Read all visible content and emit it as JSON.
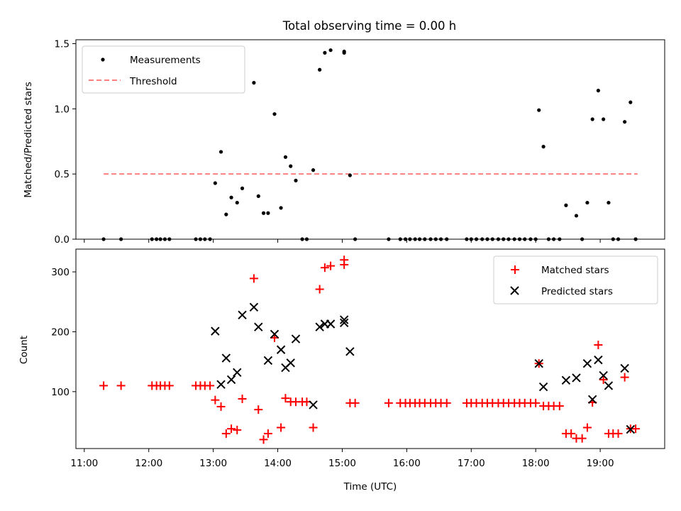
{
  "chart_data": [
    {
      "type": "scatter",
      "title": "Total observing time = 0.00 h",
      "xlabel": "",
      "ylabel": "Matched/Predicted stars",
      "xlim": [
        10.87,
        20.0
      ],
      "ylim": [
        0,
        1.53
      ],
      "yticks": [
        0.0,
        0.5,
        1.0,
        1.5
      ],
      "ytick_labels": [
        "0.0",
        "0.5",
        "1.0",
        "1.5"
      ],
      "legend": {
        "position": "top-left",
        "entries": [
          "Measurements",
          "Threshold"
        ]
      },
      "threshold": {
        "name": "Threshold",
        "y": 0.5,
        "x": [
          11.3,
          19.58
        ],
        "color": "#ff7f7f"
      },
      "series": [
        {
          "name": "Measurements",
          "color": "#000000",
          "x": [
            11.3,
            11.57,
            12.05,
            12.12,
            12.18,
            12.25,
            12.32,
            12.73,
            12.8,
            12.87,
            12.95,
            13.03,
            13.12,
            13.2,
            13.28,
            13.37,
            13.45,
            13.63,
            13.7,
            13.78,
            13.85,
            13.95,
            14.05,
            14.12,
            14.2,
            14.28,
            14.38,
            14.45,
            14.55,
            14.65,
            14.73,
            14.82,
            15.03,
            15.03,
            15.12,
            15.2,
            15.72,
            15.9,
            15.98,
            16.05,
            16.13,
            16.2,
            16.28,
            16.37,
            16.45,
            16.53,
            16.62,
            16.93,
            17.0,
            17.08,
            17.17,
            17.25,
            17.33,
            17.42,
            17.5,
            17.58,
            17.67,
            17.75,
            17.83,
            17.92,
            18.0,
            18.05,
            18.12,
            18.2,
            18.28,
            18.37,
            18.47,
            18.63,
            18.72,
            18.8,
            18.88,
            18.97,
            19.05,
            19.13,
            19.2,
            19.28,
            19.38,
            19.47,
            19.55
          ],
          "y": [
            0,
            0,
            0,
            0,
            0,
            0,
            0,
            0,
            0,
            0,
            0,
            0.43,
            0.67,
            0.19,
            0.32,
            0.28,
            0.39,
            1.2,
            0.33,
            0.2,
            0.2,
            0.96,
            0.24,
            0.63,
            0.56,
            0.45,
            0,
            0,
            0.53,
            1.3,
            1.43,
            1.45,
            1.44,
            1.43,
            0.49,
            0,
            0,
            0,
            0,
            0,
            0,
            0,
            0,
            0,
            0,
            0,
            0,
            0,
            0,
            0,
            0,
            0,
            0,
            0,
            0,
            0,
            0,
            0,
            0,
            0,
            0,
            0.99,
            0.71,
            0,
            0,
            0,
            0.26,
            0.18,
            0,
            0.28,
            0.92,
            1.14,
            0.92,
            0.28,
            0,
            0,
            0.9,
            1.05,
            0
          ]
        }
      ]
    },
    {
      "type": "scatter",
      "title": "",
      "xlabel": "Time (UTC)",
      "ylabel": "Count",
      "xlim": [
        10.87,
        20.0
      ],
      "ylim": [
        5,
        338
      ],
      "yticks": [
        100,
        200,
        300
      ],
      "ytick_labels": [
        "100",
        "200",
        "300"
      ],
      "xticks": [
        11,
        12,
        13,
        14,
        15,
        16,
        17,
        18,
        19
      ],
      "xtick_labels": [
        "11:00",
        "12:00",
        "13:00",
        "14:00",
        "15:00",
        "16:00",
        "17:00",
        "18:00",
        "19:00"
      ],
      "legend": {
        "position": "top-right",
        "entries": [
          "Matched stars",
          "Predicted stars"
        ]
      },
      "series": [
        {
          "name": "Matched stars",
          "marker": "plus",
          "color": "#ff0000",
          "x": [
            11.3,
            11.57,
            12.05,
            12.12,
            12.18,
            12.25,
            12.32,
            12.73,
            12.8,
            12.87,
            12.95,
            13.03,
            13.12,
            13.2,
            13.28,
            13.37,
            13.45,
            13.63,
            13.7,
            13.78,
            13.85,
            13.95,
            14.05,
            14.12,
            14.2,
            14.28,
            14.38,
            14.45,
            14.55,
            14.65,
            14.73,
            14.82,
            15.03,
            15.03,
            15.12,
            15.2,
            15.72,
            15.9,
            15.98,
            16.05,
            16.13,
            16.2,
            16.28,
            16.37,
            16.45,
            16.53,
            16.62,
            16.93,
            17.0,
            17.08,
            17.17,
            17.25,
            17.33,
            17.42,
            17.5,
            17.58,
            17.67,
            17.75,
            17.83,
            17.92,
            18.0,
            18.05,
            18.12,
            18.2,
            18.28,
            18.37,
            18.47,
            18.55,
            18.63,
            18.72,
            18.8,
            18.88,
            18.97,
            19.05,
            19.13,
            19.2,
            19.28,
            19.38,
            19.47,
            19.55
          ],
          "y": [
            110,
            110,
            110,
            110,
            110,
            110,
            110,
            110,
            110,
            110,
            110,
            86,
            75,
            30,
            38,
            36,
            88,
            289,
            70,
            20,
            30,
            190,
            40,
            89,
            83,
            83,
            83,
            83,
            40,
            271,
            307,
            310,
            320,
            312,
            81,
            81,
            81,
            81,
            81,
            81,
            81,
            81,
            81,
            81,
            81,
            81,
            81,
            81,
            81,
            81,
            81,
            81,
            81,
            81,
            81,
            81,
            81,
            81,
            81,
            81,
            81,
            147,
            76,
            76,
            76,
            76,
            30,
            30,
            22,
            22,
            40,
            82,
            178,
            120,
            30,
            30,
            30,
            124,
            38,
            38
          ]
        },
        {
          "name": "Predicted stars",
          "marker": "x",
          "color": "#000000",
          "x": [
            13.03,
            13.12,
            13.2,
            13.28,
            13.37,
            13.45,
            13.63,
            13.7,
            13.85,
            13.95,
            14.05,
            14.12,
            14.2,
            14.28,
            14.55,
            14.65,
            14.73,
            14.82,
            15.03,
            15.03,
            15.12,
            18.05,
            18.12,
            18.47,
            18.63,
            18.8,
            18.88,
            18.97,
            19.05,
            19.13,
            19.38,
            19.47
          ],
          "y": [
            201,
            112,
            156,
            120,
            132,
            228,
            241,
            208,
            152,
            196,
            170,
            140,
            148,
            188,
            78,
            208,
            213,
            213,
            220,
            215,
            167,
            147,
            108,
            119,
            123,
            147,
            87,
            153,
            127,
            110,
            139,
            37
          ]
        }
      ]
    }
  ]
}
